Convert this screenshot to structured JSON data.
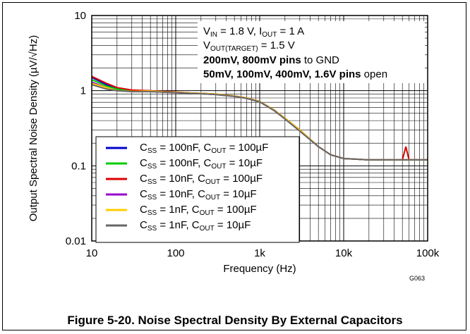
{
  "chart_data": {
    "type": "line",
    "xlabel": "Frequency (Hz)",
    "ylabel": "Output Spectral Noise Density (µV/√Hz)",
    "x_scale": "log",
    "y_scale": "log",
    "xlim": [
      10,
      100000
    ],
    "ylim": [
      0.01,
      10
    ],
    "x_ticks": [
      "10",
      "100",
      "1k",
      "10k",
      "100k"
    ],
    "y_ticks": [
      "10",
      "1",
      "0.1",
      "0.01"
    ],
    "grid": true,
    "legend_position": "bottom-left",
    "graph_id": "G063",
    "conditions": {
      "line1_a": "V",
      "line1_a_sub": "IN",
      "line1_b": " = 1.8 V, I",
      "line1_b_sub": "OUT",
      "line1_c": " = 1 A",
      "line2_a": "V",
      "line2_a_sub": "OUT(TARGET)",
      "line2_b": " = 1.5 V",
      "line3_bold": "200mV, 800mV pins",
      "line3_rest": " to GND",
      "line4_bold": "50mV, 100mV, 400mV, 1.6V pins",
      "line4_rest": " open"
    },
    "series": [
      {
        "name": "CSS = 100nF, COUT = 100µF",
        "css": "100nF",
        "cout": "100µF",
        "color": "#0000cc",
        "x": [
          10,
          15,
          20,
          30,
          50,
          80,
          100,
          150,
          200,
          300,
          500,
          700,
          1000,
          1500,
          2000,
          3000,
          5000,
          7000,
          10000,
          20000,
          50000,
          100000
        ],
        "y": [
          1.5,
          1.2,
          1.05,
          1.0,
          1.0,
          0.96,
          0.95,
          0.93,
          0.92,
          0.9,
          0.85,
          0.8,
          0.72,
          0.55,
          0.43,
          0.3,
          0.18,
          0.14,
          0.125,
          0.12,
          0.12,
          0.12
        ]
      },
      {
        "name": "CSS = 100nF, COUT = 10µF",
        "css": "100nF",
        "cout": "10µF",
        "color": "#00cc00",
        "x": [
          10,
          15,
          20,
          30,
          50,
          80,
          100,
          150,
          200,
          300,
          500,
          700,
          1000,
          1500,
          2000,
          3000,
          5000,
          7000,
          10000,
          20000,
          50000,
          100000
        ],
        "y": [
          1.4,
          1.15,
          1.05,
          1.0,
          0.98,
          0.95,
          0.95,
          0.93,
          0.91,
          0.89,
          0.84,
          0.79,
          0.71,
          0.54,
          0.42,
          0.29,
          0.18,
          0.14,
          0.125,
          0.12,
          0.12,
          0.12
        ]
      },
      {
        "name": "CSS = 10nF, COUT = 100µF",
        "css": "10nF",
        "cout": "100µF",
        "color": "#dd0000",
        "x": [
          10,
          15,
          20,
          30,
          50,
          80,
          100,
          150,
          200,
          300,
          500,
          700,
          1000,
          1500,
          2000,
          3000,
          5000,
          7000,
          10000,
          20000,
          50000,
          55000,
          60000,
          100000
        ],
        "y": [
          1.55,
          1.25,
          1.1,
          1.02,
          1.0,
          0.97,
          0.96,
          0.93,
          0.92,
          0.9,
          0.85,
          0.8,
          0.72,
          0.55,
          0.43,
          0.3,
          0.18,
          0.14,
          0.125,
          0.12,
          0.12,
          0.18,
          0.12,
          0.12
        ]
      },
      {
        "name": "CSS = 10nF, COUT = 10µF",
        "css": "10nF",
        "cout": "10µF",
        "color": "#9900cc",
        "x": [
          10,
          15,
          20,
          30,
          50,
          80,
          100,
          150,
          200,
          300,
          500,
          700,
          1000,
          1500,
          2000,
          3000,
          5000,
          7000,
          10000,
          20000,
          50000,
          100000
        ],
        "y": [
          1.3,
          1.1,
          1.0,
          0.98,
          0.98,
          0.95,
          0.94,
          0.92,
          0.91,
          0.89,
          0.84,
          0.79,
          0.71,
          0.54,
          0.42,
          0.29,
          0.18,
          0.14,
          0.125,
          0.12,
          0.12,
          0.12
        ]
      },
      {
        "name": "CSS = 1nF, COUT = 100µF",
        "css": "1nF",
        "cout": "100µF",
        "color": "#ffcc00",
        "x": [
          10,
          15,
          20,
          30,
          50,
          80,
          100,
          150,
          200,
          300,
          500,
          700,
          1000,
          1500,
          2000,
          3000,
          5000,
          7000,
          10000,
          20000,
          50000,
          100000
        ],
        "y": [
          1.25,
          1.1,
          1.0,
          0.98,
          0.99,
          0.96,
          0.95,
          0.93,
          0.92,
          0.9,
          0.85,
          0.8,
          0.72,
          0.55,
          0.43,
          0.3,
          0.18,
          0.14,
          0.125,
          0.12,
          0.12,
          0.12
        ]
      },
      {
        "name": "CSS = 1nF, COUT = 10µF",
        "css": "1nF",
        "cout": "10µF",
        "color": "#666666",
        "x": [
          10,
          15,
          20,
          30,
          50,
          80,
          100,
          150,
          200,
          300,
          500,
          700,
          1000,
          1500,
          2000,
          3000,
          5000,
          7000,
          10000,
          20000,
          50000,
          100000
        ],
        "y": [
          1.2,
          1.05,
          1.0,
          0.97,
          0.97,
          0.95,
          0.94,
          0.92,
          0.91,
          0.89,
          0.84,
          0.79,
          0.71,
          0.54,
          0.42,
          0.29,
          0.18,
          0.14,
          0.125,
          0.12,
          0.12,
          0.12
        ]
      }
    ]
  },
  "caption": "Figure 5-20. Noise Spectral Density By External Capacitors"
}
